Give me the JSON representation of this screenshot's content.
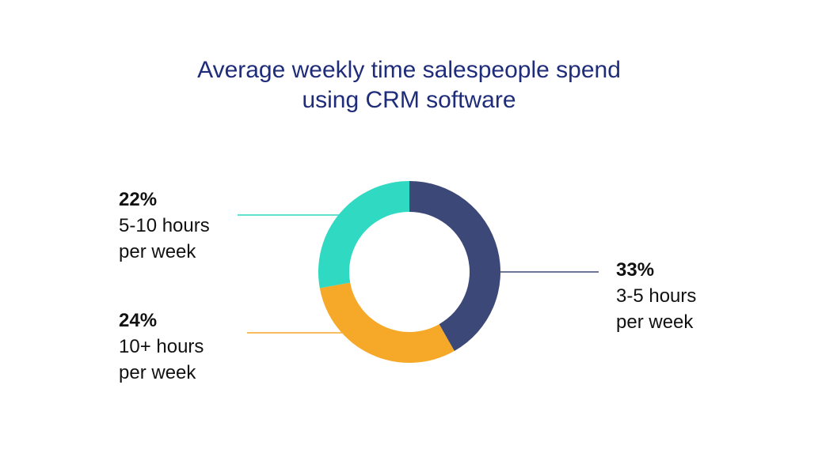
{
  "title_lines": [
    "Average weekly time salespeople spend",
    "using CRM software"
  ],
  "chart_data": {
    "type": "pie",
    "title": "Average weekly time salespeople spend using CRM software",
    "slices": [
      {
        "percent_label": "33%",
        "line1": "3-5 hours",
        "line2": "per week",
        "value": 33,
        "color": "#3c4878"
      },
      {
        "percent_label": "24%",
        "line1": "10+  hours",
        "line2": "per week",
        "value": 24,
        "color": "#f6a828"
      },
      {
        "percent_label": "22%",
        "line1": "5-10 hours",
        "line2": "per week",
        "value": 22,
        "color": "#2fd9c2"
      }
    ],
    "legend": "leader-line labels around donut"
  }
}
